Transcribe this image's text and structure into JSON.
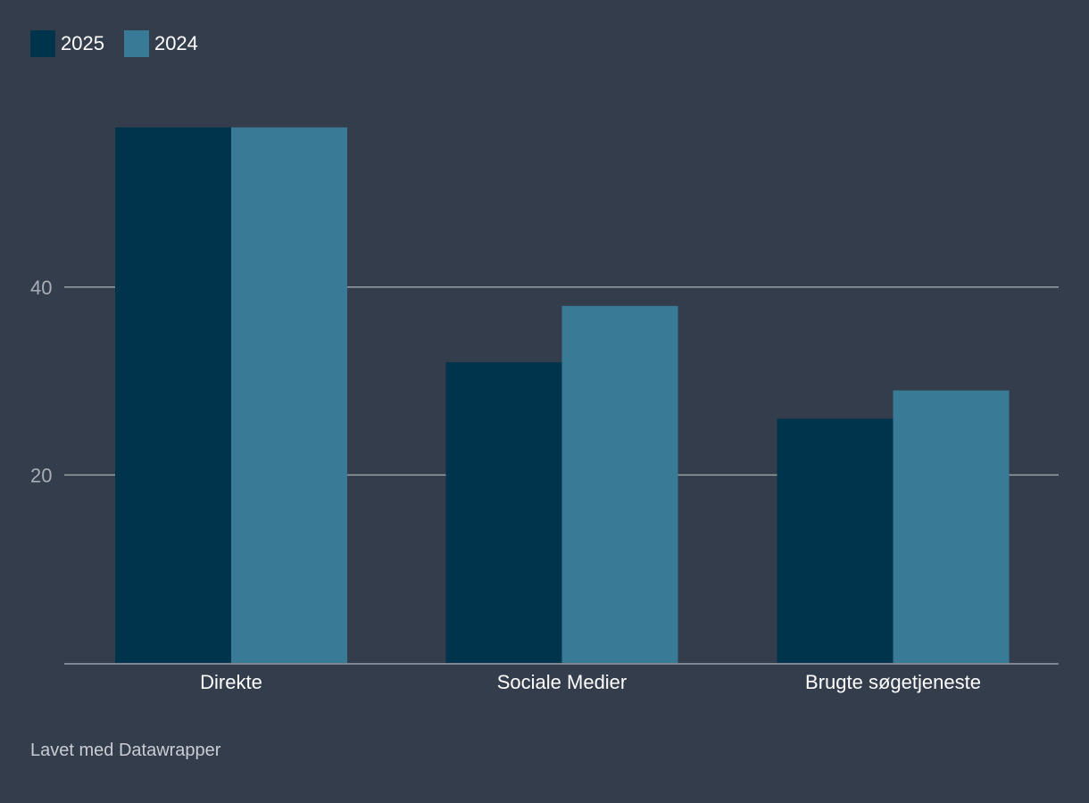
{
  "chart_data": {
    "type": "bar",
    "categories": [
      "Direkte",
      "Sociale Medier",
      "Brugte søgetjeneste"
    ],
    "series": [
      {
        "name": "2025",
        "values": [
          57,
          32,
          26
        ],
        "color": "#00344c"
      },
      {
        "name": "2024",
        "values": [
          57,
          38,
          29
        ],
        "color": "#397b96"
      }
    ],
    "y_ticks": [
      20,
      40
    ],
    "ylim": [
      0,
      60
    ],
    "grid": true,
    "legend_position": "top-left"
  },
  "legend": [
    {
      "label": "2025",
      "color": "#00344c"
    },
    {
      "label": "2024",
      "color": "#397b96"
    }
  ],
  "footer": {
    "credit": "Lavet med Datawrapper"
  },
  "colors": {
    "background": "#343d4c",
    "gridline": "#9aa0a8",
    "tick_label": "#a9aeb6",
    "category_label": "#ffffff"
  }
}
